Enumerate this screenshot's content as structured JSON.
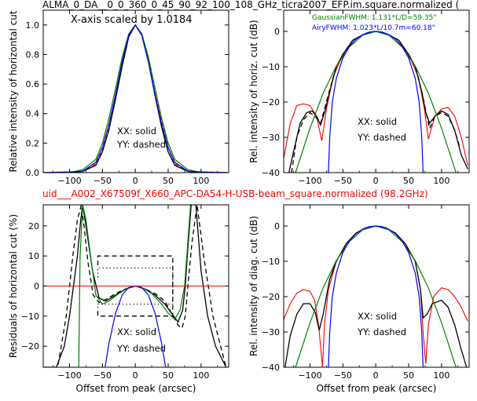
{
  "header": {
    "title": "ALMA_0_DA__0_0_360_0_45_90_92_100_108_GHz_ticra2007_EFP.im.square.normalized (",
    "subtitle": "uid___A002_X67509f_X660_APC-DA54-H-USB-beam_square.normalized (98.2GHz)",
    "subtitle_color": "#ff0000"
  },
  "colors": {
    "measured": "#000000",
    "model": "#ff0000",
    "gaussian": "#008000",
    "airy": "#0000ff",
    "zero_line": "#ff0000"
  },
  "chart_data": [
    {
      "id": "top-left",
      "type": "line",
      "title": "",
      "annotation": "X-axis scaled by 1.0184",
      "xlabel": "",
      "ylabel": "Relative intensity of horizontal cut",
      "xlim": [
        -140,
        142
      ],
      "ylim": [
        0,
        1.1
      ],
      "xticks": [
        -100,
        -50,
        0,
        50,
        100
      ],
      "yticks": [
        0.0,
        0.2,
        0.4,
        0.6,
        0.8,
        1.0
      ],
      "ytick_labels": [
        "0.0",
        "0.2",
        "0.4",
        "0.6",
        "0.8",
        "1.0"
      ],
      "legend_text": [
        "XX: solid",
        "YY: dashed"
      ],
      "series": [
        {
          "style": "red-dashed",
          "x": [
            -140,
            -100,
            -80,
            -60,
            -50,
            -40,
            -30,
            -20,
            -10,
            0,
            10,
            20,
            30,
            40,
            50,
            60,
            80,
            100,
            140
          ],
          "y": [
            0,
            0.005,
            0.01,
            0.06,
            0.15,
            0.3,
            0.5,
            0.72,
            0.92,
            1.0,
            0.94,
            0.78,
            0.57,
            0.35,
            0.17,
            0.06,
            0.01,
            0.005,
            0
          ]
        },
        {
          "style": "black-solid",
          "x": [
            -140,
            -100,
            -80,
            -60,
            -50,
            -40,
            -30,
            -20,
            -10,
            0,
            10,
            20,
            30,
            40,
            50,
            60,
            80,
            100,
            140
          ],
          "y": [
            0,
            0.002,
            0.008,
            0.05,
            0.14,
            0.29,
            0.5,
            0.72,
            0.92,
            1.0,
            0.93,
            0.75,
            0.52,
            0.31,
            0.14,
            0.05,
            0.008,
            0.002,
            0
          ]
        },
        {
          "style": "green-solid",
          "x": [
            -140,
            -100,
            -80,
            -60,
            -50,
            -40,
            -30,
            -20,
            -10,
            0,
            10,
            20,
            30,
            40,
            50,
            60,
            80,
            100,
            140
          ],
          "y": [
            0,
            0.001,
            0.02,
            0.09,
            0.2,
            0.37,
            0.57,
            0.78,
            0.94,
            1.0,
            0.94,
            0.78,
            0.57,
            0.37,
            0.2,
            0.09,
            0.02,
            0.001,
            0
          ]
        },
        {
          "style": "blue-solid",
          "x": [
            -140,
            -100,
            -80,
            -60,
            -50,
            -40,
            -30,
            -20,
            -10,
            0,
            10,
            20,
            30,
            40,
            50,
            60,
            80,
            100,
            140
          ],
          "y": [
            0,
            0.005,
            0.01,
            0.07,
            0.17,
            0.33,
            0.53,
            0.75,
            0.93,
            1.0,
            0.93,
            0.75,
            0.53,
            0.33,
            0.17,
            0.07,
            0.01,
            0.005,
            0
          ]
        }
      ]
    },
    {
      "id": "top-right",
      "type": "line",
      "title": "",
      "xlabel": "",
      "ylabel": "Rel. intensity of horiz. cut (dB)",
      "xlim": [
        -140,
        142
      ],
      "ylim": [
        -40,
        6
      ],
      "xticks": [
        -100,
        -50,
        0,
        50,
        100
      ],
      "yticks": [
        0,
        -10,
        -20,
        -30,
        -40
      ],
      "legend_text": [
        "XX: solid",
        "YY: dashed"
      ],
      "annotations": [
        {
          "text": "GaussianFWHM: 1.131*L/D=59.35\"",
          "color": "#008000"
        },
        {
          "text": "AiryFWHM: 1.023*L/10.7m=60.18\"",
          "color": "#0000ff"
        }
      ],
      "series": [
        {
          "style": "red-solid",
          "x": [
            -140,
            -130,
            -120,
            -110,
            -100,
            -90,
            -82,
            -75,
            -65,
            -50,
            -35,
            -20,
            -10,
            0,
            10,
            20,
            35,
            50,
            65,
            74,
            80,
            90,
            100,
            110,
            120,
            130,
            140
          ],
          "y": [
            -36,
            -26,
            -21,
            -20.5,
            -21,
            -24,
            -31,
            -22,
            -13,
            -6.5,
            -2.5,
            -1,
            -0.3,
            0,
            -0.3,
            -1,
            -2.5,
            -6.5,
            -13,
            -22,
            -30.5,
            -24,
            -22,
            -21.5,
            -24,
            -30,
            -38
          ]
        },
        {
          "style": "black-solid",
          "x": [
            -132,
            -125,
            -115,
            -105,
            -97,
            -90,
            -84,
            -78,
            -70,
            -60,
            -50,
            -35,
            -20,
            -10,
            0,
            10,
            20,
            35,
            50,
            60,
            70,
            76,
            82,
            90,
            100,
            110,
            120,
            130,
            140
          ],
          "y": [
            -40,
            -34,
            -26,
            -23,
            -22.5,
            -24,
            -26.5,
            -23,
            -17,
            -10,
            -6.5,
            -2.5,
            -1,
            -0.3,
            0,
            -0.3,
            -1,
            -2.5,
            -6.5,
            -10,
            -17,
            -23,
            -26,
            -24,
            -22.5,
            -23.5,
            -28,
            -35,
            -39
          ]
        },
        {
          "style": "black-dashed",
          "x": [
            -128,
            -120,
            -110,
            -100,
            -90,
            -84,
            -78,
            -70,
            -60,
            -50,
            -35,
            -20,
            -10,
            0,
            10,
            20,
            35,
            50,
            60,
            70,
            76,
            82,
            90,
            100,
            110,
            120,
            128
          ],
          "y": [
            -40,
            -30,
            -25,
            -23,
            -24.5,
            -26,
            -22,
            -16.5,
            -10,
            -6.5,
            -2.5,
            -1,
            -0.3,
            0,
            -0.3,
            -1,
            -2.5,
            -6.5,
            -10,
            -17,
            -22.5,
            -27.5,
            -24,
            -23,
            -24,
            -28,
            -33
          ]
        },
        {
          "style": "green-solid",
          "x": [
            -122,
            -100,
            -80,
            -60,
            -40,
            -20,
            0,
            20,
            40,
            60,
            80,
            100,
            122
          ],
          "y": [
            -40,
            -27.4,
            -17.5,
            -9.8,
            -4.4,
            -1.1,
            0,
            -1.1,
            -4.4,
            -9.8,
            -17.5,
            -27.4,
            -40
          ]
        },
        {
          "style": "blue-solid",
          "x": [
            -72,
            -70,
            -66,
            -60,
            -50,
            -40,
            -30,
            -20,
            -10,
            0,
            10,
            20,
            30,
            40,
            50,
            60,
            66,
            70,
            72
          ],
          "y": [
            -40,
            -30,
            -20,
            -13.3,
            -7.5,
            -4.2,
            -2.2,
            -0.9,
            -0.2,
            0,
            -0.2,
            -0.9,
            -2.2,
            -4.2,
            -7.5,
            -13.3,
            -20,
            -30,
            -40
          ]
        }
      ]
    },
    {
      "id": "bottom-left",
      "type": "line",
      "title": "",
      "xlabel": "Offset from peak (arcsec)",
      "ylabel": "Residuals of horizontal cut (%)",
      "xlim": [
        -140,
        142
      ],
      "ylim": [
        -27,
        27
      ],
      "xticks": [
        -100,
        -50,
        0,
        50,
        100
      ],
      "yticks": [
        20,
        10,
        0,
        -10,
        -20
      ],
      "legend_text": [
        "XX: solid",
        "YY: dashed"
      ],
      "series": [
        {
          "style": "black-solid",
          "x": [
            -138,
            -120,
            -108,
            -100,
            -94,
            -88,
            -83,
            -80,
            -75,
            -65,
            -55,
            -45,
            -30,
            -15,
            0,
            15,
            30,
            45,
            55,
            65,
            72,
            76,
            79,
            85,
            92,
            100,
            110,
            122,
            138
          ],
          "y": [
            -27,
            -27,
            -20,
            -10,
            0,
            10,
            22,
            27,
            20,
            5,
            -4,
            -5,
            -3,
            -1,
            0,
            -1,
            -3,
            -6,
            -9,
            -12,
            -8,
            0,
            10,
            27,
            27,
            5,
            -10,
            -20,
            -27
          ]
        },
        {
          "style": "black-dashed",
          "x": [
            -138,
            -118,
            -105,
            -100,
            -95,
            -88,
            -82,
            -78,
            -72,
            -64,
            -55,
            -45,
            -30,
            -15,
            0,
            15,
            30,
            45,
            55,
            65,
            71,
            76,
            80,
            86,
            94,
            104,
            118,
            138
          ],
          "y": [
            -27,
            -27,
            -10,
            0,
            10,
            22,
            27,
            20,
            8,
            -3,
            -5.5,
            -4.5,
            -2.5,
            -1,
            0,
            -1,
            -2.5,
            -5,
            -9,
            -13,
            -14,
            -10,
            0,
            14,
            27,
            10,
            -10,
            -27
          ]
        },
        {
          "style": "green-solid",
          "x": [
            -86,
            -84,
            -80,
            -75,
            -68,
            -60,
            -50,
            -40,
            -25,
            -10,
            0,
            10,
            25,
            40,
            50,
            60,
            68,
            75,
            80,
            84,
            86
          ],
          "y": [
            -27,
            10,
            27,
            22,
            10,
            -3,
            -6,
            -5,
            -2.5,
            -0.5,
            0,
            -0.5,
            -2.5,
            -6,
            -9,
            -11,
            -8,
            0,
            15,
            27,
            27
          ]
        },
        {
          "style": "blue-solid",
          "x": [
            -46,
            -40,
            -30,
            -20,
            -10,
            0,
            10,
            20,
            30,
            40,
            46
          ],
          "y": [
            -27,
            -19,
            -9,
            -3,
            -0.5,
            0,
            -0.5,
            -3,
            -9,
            -19,
            -27
          ]
        },
        {
          "style": "red-solid",
          "x": [
            -140,
            142
          ],
          "y": [
            0,
            0
          ]
        }
      ],
      "reference_boxes": [
        {
          "style": "black-dashed",
          "x": [
            -57,
            57
          ],
          "y": [
            -10,
            10
          ]
        },
        {
          "style": "black-dotted",
          "x": [
            -57,
            57
          ],
          "y": [
            -6,
            6
          ]
        }
      ]
    },
    {
      "id": "bottom-right",
      "type": "line",
      "title": "",
      "xlabel": "Offset from peak (arcsec)",
      "ylabel": "Rel. intensity of diag. cut (dB)",
      "xlim": [
        -140,
        142
      ],
      "ylim": [
        -40,
        6
      ],
      "xticks": [
        -100,
        -50,
        0,
        50,
        100
      ],
      "yticks": [
        0,
        -10,
        -20,
        -30,
        -40
      ],
      "legend_text": [
        "XX: solid",
        "YY: dashed"
      ],
      "series": [
        {
          "style": "red-solid",
          "x": [
            -140,
            -130,
            -120,
            -110,
            -100,
            -93,
            -87,
            -81,
            -78,
            -72,
            -60,
            -45,
            -30,
            -15,
            0,
            15,
            30,
            45,
            60,
            68,
            72,
            76,
            80,
            88,
            100,
            110,
            120,
            130,
            140
          ],
          "y": [
            -26.5,
            -22,
            -19,
            -18,
            -18.5,
            -21,
            -28,
            -40,
            -28,
            -18,
            -10,
            -5,
            -2,
            -0.5,
            0,
            -0.5,
            -2,
            -5,
            -10,
            -18,
            -30,
            -39,
            -28,
            -20,
            -17.5,
            -18,
            -20,
            -23,
            -27
          ]
        },
        {
          "style": "black-solid",
          "x": [
            -138,
            -130,
            -120,
            -110,
            -100,
            -92,
            -86,
            -80,
            -70,
            -60,
            -45,
            -30,
            -15,
            0,
            15,
            30,
            45,
            60,
            68,
            72,
            78,
            86,
            100,
            110,
            120,
            130,
            138
          ],
          "y": [
            -40,
            -31,
            -25,
            -22,
            -22,
            -24.5,
            -29.5,
            -25,
            -15,
            -10,
            -5,
            -2,
            -0.5,
            0,
            -0.5,
            -2,
            -5,
            -10,
            -18,
            -26,
            -25,
            -22,
            -21,
            -23,
            -28,
            -35,
            -40
          ]
        },
        {
          "style": "green-solid",
          "x": [
            -122,
            -100,
            -80,
            -60,
            -40,
            -20,
            0,
            20,
            40,
            60,
            80,
            100,
            122
          ],
          "y": [
            -40,
            -27.4,
            -17.5,
            -9.8,
            -4.4,
            -1.1,
            0,
            -1.1,
            -4.4,
            -9.8,
            -17.5,
            -27.4,
            -40
          ]
        },
        {
          "style": "blue-solid",
          "x": [
            -72,
            -70,
            -66,
            -60,
            -50,
            -40,
            -30,
            -20,
            -10,
            0,
            10,
            20,
            30,
            40,
            50,
            60,
            66,
            70,
            72
          ],
          "y": [
            -40,
            -30,
            -20,
            -13.3,
            -7.5,
            -4.2,
            -2.2,
            -0.9,
            -0.2,
            0,
            -0.2,
            -0.9,
            -2.2,
            -4.2,
            -7.5,
            -13.3,
            -20,
            -30,
            -40
          ]
        }
      ]
    }
  ]
}
